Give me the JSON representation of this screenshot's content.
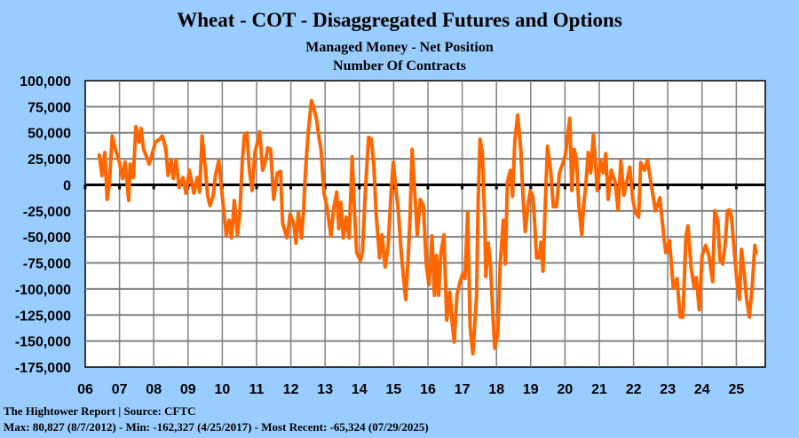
{
  "chart_data": {
    "type": "line",
    "title": "Wheat - COT - Disaggregated Futures and Options",
    "subtitle": "Managed Money - Net Position",
    "ylabel": "Number Of Contracts",
    "xlabel": "",
    "xlim": [
      2006,
      2025.85
    ],
    "ylim": [
      -175000,
      100000
    ],
    "grid": true,
    "y_ticks": [
      100000,
      75000,
      50000,
      25000,
      0,
      -25000,
      -50000,
      -75000,
      -100000,
      -125000,
      -150000,
      -175000
    ],
    "y_tick_labels": [
      "100,000",
      "75,000",
      "50,000",
      "25,000",
      "0",
      "-25,000",
      "-50,000",
      "-75,000",
      "-100,000",
      "-125,000",
      "-150,000",
      "-175,000"
    ],
    "x_ticks": [
      2006,
      2007,
      2008,
      2009,
      2010,
      2011,
      2012,
      2013,
      2014,
      2015,
      2016,
      2017,
      2018,
      2019,
      2020,
      2021,
      2022,
      2023,
      2024,
      2025
    ],
    "x_tick_labels": [
      "06",
      "07",
      "08",
      "09",
      "10",
      "11",
      "12",
      "13",
      "14",
      "15",
      "16",
      "17",
      "18",
      "19",
      "20",
      "21",
      "22",
      "23",
      "24",
      "25"
    ],
    "series": [
      {
        "name": "Managed Money Net Position",
        "color": "#ff6600",
        "points": [
          [
            2006.41,
            28600
          ],
          [
            2006.49,
            8800
          ],
          [
            2006.57,
            31000
          ],
          [
            2006.64,
            -14000
          ],
          [
            2006.7,
            0
          ],
          [
            2006.79,
            47000
          ],
          [
            2006.88,
            34500
          ],
          [
            2007.01,
            20000
          ],
          [
            2007.09,
            6000
          ],
          [
            2007.16,
            22000
          ],
          [
            2007.27,
            -15000
          ],
          [
            2007.31,
            20000
          ],
          [
            2007.4,
            7000
          ],
          [
            2007.48,
            56000
          ],
          [
            2007.57,
            41000
          ],
          [
            2007.63,
            54000
          ],
          [
            2007.7,
            34500
          ],
          [
            2007.87,
            20000
          ],
          [
            2008.05,
            41000
          ],
          [
            2008.18,
            44000
          ],
          [
            2008.25,
            47000
          ],
          [
            2008.35,
            34500
          ],
          [
            2008.42,
            9000
          ],
          [
            2008.51,
            23000
          ],
          [
            2008.57,
            6000
          ],
          [
            2008.65,
            24000
          ],
          [
            2008.74,
            -2600
          ],
          [
            2008.85,
            7000
          ],
          [
            2008.94,
            -8000
          ],
          [
            2009.04,
            14000
          ],
          [
            2009.17,
            -8000
          ],
          [
            2009.27,
            7000
          ],
          [
            2009.34,
            -7000
          ],
          [
            2009.41,
            47000
          ],
          [
            2009.51,
            14000
          ],
          [
            2009.57,
            -10000
          ],
          [
            2009.64,
            -20000
          ],
          [
            2009.73,
            -11000
          ],
          [
            2009.8,
            9000
          ],
          [
            2009.9,
            23000
          ],
          [
            2009.99,
            -8000
          ],
          [
            2010.12,
            -49000
          ],
          [
            2010.2,
            -34000
          ],
          [
            2010.27,
            -51000
          ],
          [
            2010.35,
            -15000
          ],
          [
            2010.44,
            -48000
          ],
          [
            2010.51,
            -28000
          ],
          [
            2010.58,
            20000
          ],
          [
            2010.64,
            47000
          ],
          [
            2010.72,
            50000
          ],
          [
            2010.79,
            14000
          ],
          [
            2010.87,
            -5500
          ],
          [
            2010.95,
            31000
          ],
          [
            2011.02,
            40000
          ],
          [
            2011.09,
            51000
          ],
          [
            2011.18,
            14000
          ],
          [
            2011.26,
            23000
          ],
          [
            2011.33,
            35600
          ],
          [
            2011.41,
            34000
          ],
          [
            2011.5,
            -14000
          ],
          [
            2011.61,
            11500
          ],
          [
            2011.7,
            13000
          ],
          [
            2011.76,
            -36700
          ],
          [
            2011.89,
            -51000
          ],
          [
            2011.98,
            -28000
          ],
          [
            2012.08,
            -36700
          ],
          [
            2012.15,
            -56000
          ],
          [
            2012.22,
            -26700
          ],
          [
            2012.31,
            -51000
          ],
          [
            2012.37,
            -25000
          ],
          [
            2012.43,
            14000
          ],
          [
            2012.5,
            48000
          ],
          [
            2012.6,
            80827
          ],
          [
            2012.67,
            74000
          ],
          [
            2012.75,
            62500
          ],
          [
            2012.82,
            45500
          ],
          [
            2012.88,
            34000
          ],
          [
            2012.97,
            -8000
          ],
          [
            2013.05,
            -20000
          ],
          [
            2013.17,
            -49000
          ],
          [
            2013.25,
            -22500
          ],
          [
            2013.34,
            -7000
          ],
          [
            2013.4,
            -42000
          ],
          [
            2013.46,
            -17000
          ],
          [
            2013.53,
            -51000
          ],
          [
            2013.62,
            -31000
          ],
          [
            2013.7,
            -51000
          ],
          [
            2013.79,
            27000
          ],
          [
            2013.85,
            -20000
          ],
          [
            2013.92,
            -65000
          ],
          [
            2014.03,
            -73000
          ],
          [
            2014.09,
            -65000
          ],
          [
            2014.17,
            -8000
          ],
          [
            2014.27,
            45500
          ],
          [
            2014.35,
            44000
          ],
          [
            2014.42,
            20000
          ],
          [
            2014.49,
            -28000
          ],
          [
            2014.59,
            -70000
          ],
          [
            2014.66,
            -48000
          ],
          [
            2014.75,
            -79000
          ],
          [
            2014.84,
            -59000
          ],
          [
            2014.92,
            -11000
          ],
          [
            2014.99,
            21500
          ],
          [
            2015.08,
            -8000
          ],
          [
            2015.14,
            -26700
          ],
          [
            2015.22,
            -65000
          ],
          [
            2015.35,
            -110000
          ],
          [
            2015.42,
            -73000
          ],
          [
            2015.48,
            -31000
          ],
          [
            2015.54,
            34000
          ],
          [
            2015.63,
            -14000
          ],
          [
            2015.69,
            -48000
          ],
          [
            2015.78,
            -14000
          ],
          [
            2015.87,
            -20000
          ],
          [
            2015.95,
            -76000
          ],
          [
            2016.03,
            -96000
          ],
          [
            2016.12,
            -49000
          ],
          [
            2016.19,
            -106000
          ],
          [
            2016.25,
            -68000
          ],
          [
            2016.31,
            -106000
          ],
          [
            2016.38,
            -65000
          ],
          [
            2016.47,
            -48000
          ],
          [
            2016.55,
            -130000
          ],
          [
            2016.64,
            -103000
          ],
          [
            2016.71,
            -133000
          ],
          [
            2016.77,
            -151000
          ],
          [
            2016.85,
            -105000
          ],
          [
            2016.94,
            -93000
          ],
          [
            2017.02,
            -85000
          ],
          [
            2017.08,
            -90000
          ],
          [
            2017.16,
            -26700
          ],
          [
            2017.23,
            -136000
          ],
          [
            2017.31,
            -162327
          ],
          [
            2017.42,
            -107000
          ],
          [
            2017.46,
            -22500
          ],
          [
            2017.52,
            44000
          ],
          [
            2017.59,
            31000
          ],
          [
            2017.66,
            -36700
          ],
          [
            2017.69,
            -88000
          ],
          [
            2017.76,
            -56000
          ],
          [
            2017.83,
            -79000
          ],
          [
            2017.89,
            -122000
          ],
          [
            2017.95,
            -157000
          ],
          [
            2018.04,
            -144000
          ],
          [
            2018.11,
            -76000
          ],
          [
            2018.2,
            -34000
          ],
          [
            2018.26,
            -76000
          ],
          [
            2018.32,
            3000
          ],
          [
            2018.41,
            14000
          ],
          [
            2018.47,
            -11000
          ],
          [
            2018.54,
            43000
          ],
          [
            2018.62,
            67000
          ],
          [
            2018.71,
            34000
          ],
          [
            2018.78,
            -14000
          ],
          [
            2018.84,
            -45000
          ],
          [
            2018.93,
            -17000
          ],
          [
            2018.99,
            -5500
          ],
          [
            2019.06,
            -11000
          ],
          [
            2019.1,
            -28000
          ],
          [
            2019.17,
            -70000
          ],
          [
            2019.25,
            -70000
          ],
          [
            2019.3,
            -55000
          ],
          [
            2019.36,
            -83000
          ],
          [
            2019.42,
            -22500
          ],
          [
            2019.49,
            37000
          ],
          [
            2019.58,
            14000
          ],
          [
            2019.66,
            -21000
          ],
          [
            2019.75,
            -21000
          ],
          [
            2019.84,
            11500
          ],
          [
            2019.93,
            20000
          ],
          [
            2020.01,
            28600
          ],
          [
            2020.08,
            48000
          ],
          [
            2020.14,
            64000
          ],
          [
            2020.2,
            -5500
          ],
          [
            2020.27,
            34000
          ],
          [
            2020.34,
            23000
          ],
          [
            2020.4,
            -17000
          ],
          [
            2020.49,
            -48000
          ],
          [
            2020.54,
            -22500
          ],
          [
            2020.61,
            0
          ],
          [
            2020.68,
            31000
          ],
          [
            2020.75,
            11500
          ],
          [
            2020.83,
            48000
          ],
          [
            2020.89,
            20000
          ],
          [
            2020.94,
            -5500
          ],
          [
            2021.03,
            24000
          ],
          [
            2021.12,
            11500
          ],
          [
            2021.19,
            30000
          ],
          [
            2021.26,
            -14000
          ],
          [
            2021.35,
            14000
          ],
          [
            2021.46,
            3000
          ],
          [
            2021.55,
            -24000
          ],
          [
            2021.63,
            23000
          ],
          [
            2021.72,
            -10000
          ],
          [
            2021.82,
            6000
          ],
          [
            2021.89,
            17000
          ],
          [
            2021.98,
            -14000
          ],
          [
            2022.06,
            -26700
          ],
          [
            2022.15,
            -31000
          ],
          [
            2022.21,
            21500
          ],
          [
            2022.32,
            14000
          ],
          [
            2022.41,
            24000
          ],
          [
            2022.51,
            1600
          ],
          [
            2022.64,
            -25000
          ],
          [
            2022.77,
            -12500
          ],
          [
            2022.86,
            -42000
          ],
          [
            2022.94,
            -65000
          ],
          [
            2023.05,
            -53600
          ],
          [
            2023.16,
            -99000
          ],
          [
            2023.27,
            -90000
          ],
          [
            2023.36,
            -127000
          ],
          [
            2023.44,
            -127000
          ],
          [
            2023.53,
            -49000
          ],
          [
            2023.59,
            -39500
          ],
          [
            2023.68,
            -79000
          ],
          [
            2023.77,
            -99000
          ],
          [
            2023.83,
            -89000
          ],
          [
            2023.92,
            -120000
          ],
          [
            2024.0,
            -68000
          ],
          [
            2024.11,
            -58000
          ],
          [
            2024.2,
            -68000
          ],
          [
            2024.31,
            -93000
          ],
          [
            2024.37,
            -25000
          ],
          [
            2024.46,
            -34000
          ],
          [
            2024.52,
            -72000
          ],
          [
            2024.6,
            -76000
          ],
          [
            2024.67,
            -58000
          ],
          [
            2024.74,
            -25000
          ],
          [
            2024.8,
            -24000
          ],
          [
            2024.86,
            -31000
          ],
          [
            2024.95,
            -68000
          ],
          [
            2025.02,
            -93000
          ],
          [
            2025.09,
            -110000
          ],
          [
            2025.15,
            -62000
          ],
          [
            2025.24,
            -88000
          ],
          [
            2025.3,
            -110000
          ],
          [
            2025.38,
            -127000
          ],
          [
            2025.47,
            -96000
          ],
          [
            2025.54,
            -58000
          ],
          [
            2025.58,
            -65324
          ]
        ]
      }
    ],
    "footer": {
      "source": "The Hightower Report | Source: CFTC",
      "stats": "Max: 80,827 (8/7/2012)  -  Min: -162,327 (4/25/2017) - Most Recent: -65,324 (07/29/2025)"
    }
  }
}
